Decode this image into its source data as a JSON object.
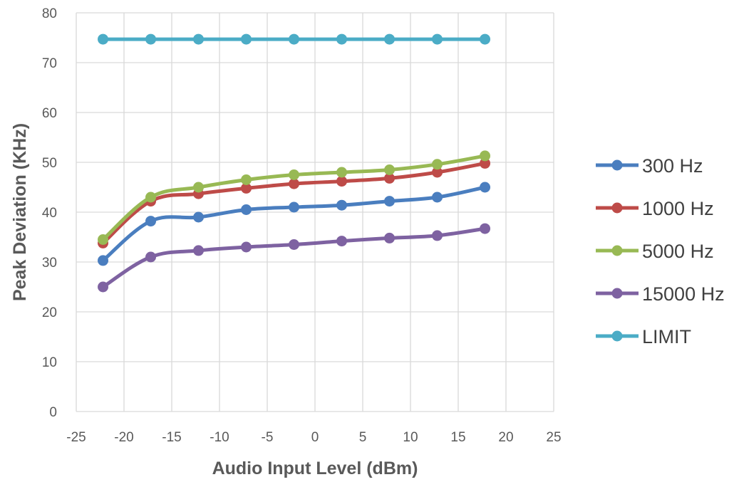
{
  "chart_data": {
    "type": "line",
    "title": "",
    "xlabel": "Audio Input Level (dBm)",
    "ylabel": "Peak Deviation (KHz)",
    "xlim": [
      -25,
      25
    ],
    "ylim": [
      0,
      80
    ],
    "x_ticks": [
      "-25",
      "-20",
      "-15",
      "-10",
      "-5",
      "0",
      "5",
      "10",
      "15",
      "20",
      "25"
    ],
    "y_ticks": [
      "0",
      "10",
      "20",
      "30",
      "40",
      "50",
      "60",
      "70",
      "80"
    ],
    "grid": true,
    "legend_position": "right",
    "smooth": true,
    "x": [
      -22.2,
      -17.2,
      -12.2,
      -7.2,
      -2.2,
      2.8,
      7.8,
      12.8,
      17.8
    ],
    "series": [
      {
        "name": "300 Hz",
        "color": "#4a7ebf",
        "values": [
          30.3,
          38.2,
          39.0,
          40.5,
          41.0,
          41.4,
          42.2,
          43.0,
          45.0
        ]
      },
      {
        "name": "1000 Hz",
        "color": "#be4b48",
        "values": [
          33.8,
          42.2,
          43.7,
          44.8,
          45.7,
          46.2,
          46.8,
          48.0,
          49.8
        ]
      },
      {
        "name": "5000 Hz",
        "color": "#98b954",
        "values": [
          34.5,
          43.0,
          45.0,
          46.5,
          47.5,
          48.0,
          48.5,
          49.6,
          51.3
        ]
      },
      {
        "name": "15000 Hz",
        "color": "#7e62a1",
        "values": [
          25.0,
          31.0,
          32.3,
          33.0,
          33.5,
          34.2,
          34.8,
          35.3,
          36.7
        ]
      },
      {
        "name": "LIMIT",
        "color": "#4bacc6",
        "values": [
          74.7,
          74.7,
          74.7,
          74.7,
          74.7,
          74.7,
          74.7,
          74.7,
          74.7
        ]
      }
    ]
  }
}
